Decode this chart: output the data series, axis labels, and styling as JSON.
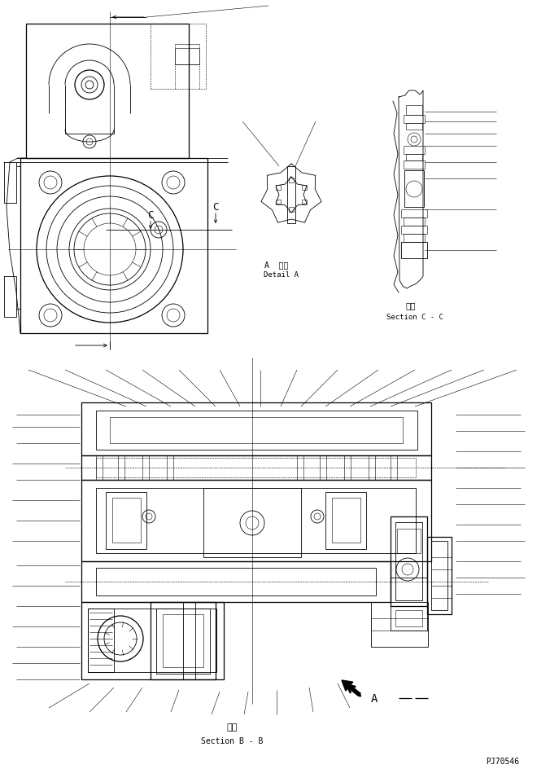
{
  "background_color": "#ffffff",
  "line_color": "#000000",
  "label_A_detail_jp": "A  詳細",
  "label_A_detail_en": "Detail A",
  "label_sectionCC_jp": "断面",
  "label_sectionCC_en": "Section C - C",
  "label_sectionBB_jp": "断面",
  "label_sectionBB_en": "Section B - B",
  "label_partno": "PJ70546",
  "label_C": "C",
  "label_A": "A"
}
